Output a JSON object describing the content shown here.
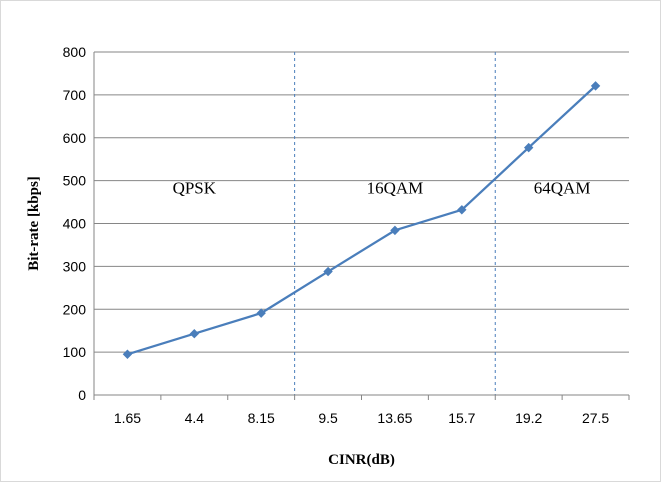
{
  "chart_data": {
    "type": "line",
    "title": "",
    "xlabel": "CINR(dB)",
    "ylabel": "Bit-rate [kbps]",
    "categories": [
      "1.65",
      "4.4",
      "8.15",
      "9.5",
      "13.65",
      "15.7",
      "19.2",
      "27.5"
    ],
    "series": [
      {
        "values": [
          95,
          143,
          191,
          288,
          384,
          432,
          577,
          721
        ],
        "color": "#4a7ebb",
        "marker": "diamond"
      }
    ],
    "ylim": [
      0,
      800
    ],
    "yticks": [
      0,
      100,
      200,
      300,
      400,
      500,
      600,
      700,
      800
    ],
    "grid": "horizontal",
    "legend": "none",
    "region_labels": [
      {
        "text": "QPSK",
        "start_index": 0,
        "end_index": 2
      },
      {
        "text": "16QAM",
        "start_index": 3,
        "end_index": 5
      },
      {
        "text": "64QAM",
        "start_index": 6,
        "end_index": 7
      }
    ],
    "dividers": [
      {
        "between": [
          2,
          3
        ],
        "style": "dashed"
      },
      {
        "between": [
          5,
          6
        ],
        "style": "dashed"
      }
    ]
  }
}
